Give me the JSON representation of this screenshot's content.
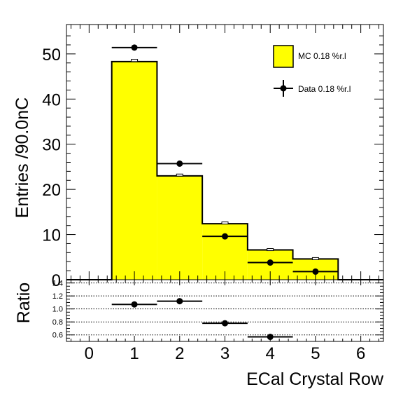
{
  "chart_data": [
    {
      "type": "bar",
      "panel": "main",
      "ylabel": "Entries /90.0nC",
      "xlim": [
        -0.5,
        6.5
      ],
      "ylim": [
        0,
        56.5
      ],
      "y_ticks": [
        0,
        10,
        20,
        30,
        40,
        50
      ],
      "y_tick_labels": [
        "0",
        "10",
        "20",
        "30",
        "40",
        "50"
      ],
      "bins": [
        {
          "x": 1,
          "low": 0.5,
          "high": 1.5
        },
        {
          "x": 2,
          "low": 1.5,
          "high": 2.5
        },
        {
          "x": 3,
          "low": 2.5,
          "high": 3.5
        },
        {
          "x": 4,
          "low": 3.5,
          "high": 4.5
        },
        {
          "x": 5,
          "low": 4.5,
          "high": 5.5
        }
      ],
      "series": [
        {
          "name": "MC 0.18 %r.l",
          "style": "filled-histogram",
          "color": "#ffff00",
          "values": [
            48.3,
            23.0,
            12.4,
            6.6,
            4.6
          ],
          "errors": [
            0.5,
            0.4,
            0.4,
            0.3,
            0.3
          ]
        },
        {
          "name": "Data 0.18 %r.l",
          "style": "markers",
          "color": "#000000",
          "values": [
            51.4,
            25.7,
            9.6,
            3.8,
            1.8
          ]
        }
      ],
      "legend": {
        "position": "top-right",
        "entries": [
          "MC 0.18 %r.l",
          "Data 0.18 %r.l"
        ]
      }
    },
    {
      "type": "scatter",
      "panel": "ratio",
      "ylabel": "Ratio",
      "xlabel": "ECal Crystal Row",
      "xlim": [
        -0.5,
        6.5
      ],
      "ylim": [
        0.5,
        1.45
      ],
      "x_ticks": [
        0,
        1,
        2,
        3,
        4,
        5,
        6
      ],
      "x_tick_labels": [
        "0",
        "1",
        "2",
        "3",
        "4",
        "5",
        "6"
      ],
      "y_ticks": [
        0.6,
        0.8,
        1.0,
        1.2,
        1.4
      ],
      "y_tick_labels": [
        "0.6",
        "0.8",
        "1.0",
        "1.2",
        "1.4"
      ],
      "grid": true,
      "points": [
        {
          "x": 1,
          "y": 1.07
        },
        {
          "x": 2,
          "y": 1.12
        },
        {
          "x": 3,
          "y": 0.78
        },
        {
          "x": 4,
          "y": 0.57
        }
      ]
    }
  ]
}
